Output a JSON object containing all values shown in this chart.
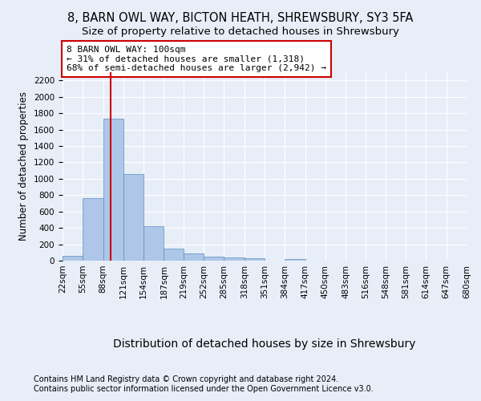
{
  "title1": "8, BARN OWL WAY, BICTON HEATH, SHREWSBURY, SY3 5FA",
  "title2": "Size of property relative to detached houses in Shrewsbury",
  "xlabel": "Distribution of detached houses by size in Shrewsbury",
  "ylabel": "Number of detached properties",
  "annotation_line1": "8 BARN OWL WAY: 100sqm",
  "annotation_line2": "← 31% of detached houses are smaller (1,318)",
  "annotation_line3": "68% of semi-detached houses are larger (2,942) →",
  "footnote1": "Contains HM Land Registry data © Crown copyright and database right 2024.",
  "footnote2": "Contains public sector information licensed under the Open Government Licence v3.0.",
  "bar_color": "#aec6e8",
  "bar_edge_color": "#5a8fc2",
  "red_line_x": 100,
  "bin_edges": [
    22,
    55,
    88,
    121,
    154,
    187,
    219,
    252,
    285,
    318,
    351,
    384,
    417,
    450,
    483,
    516,
    548,
    581,
    614,
    647,
    680
  ],
  "bar_heights": [
    55,
    760,
    1730,
    1060,
    420,
    150,
    85,
    50,
    40,
    30,
    0,
    20,
    0,
    0,
    0,
    0,
    0,
    0,
    0,
    0
  ],
  "ylim": [
    0,
    2300
  ],
  "yticks": [
    0,
    200,
    400,
    600,
    800,
    1000,
    1200,
    1400,
    1600,
    1800,
    2000,
    2200
  ],
  "background_color": "#e8eef8",
  "axes_background_color": "#e8eef8",
  "grid_color": "#ffffff",
  "annotation_box_color": "#ffffff",
  "annotation_box_edge_color": "#cc0000",
  "red_line_color": "#cc0000",
  "title1_fontsize": 10.5,
  "title2_fontsize": 9.5,
  "xlabel_fontsize": 10,
  "ylabel_fontsize": 8.5,
  "tick_fontsize": 7.5,
  "annotation_fontsize": 8,
  "footnote_fontsize": 7
}
